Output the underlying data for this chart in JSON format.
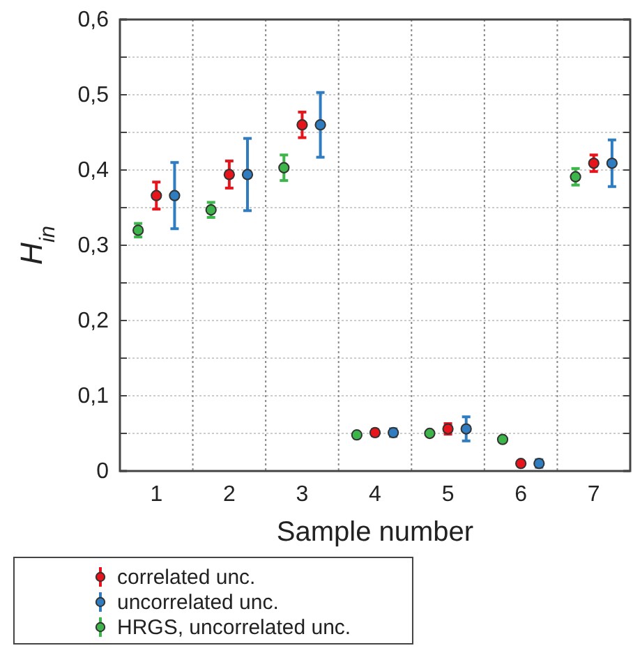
{
  "chart_data": {
    "type": "scatter",
    "xlabel": "Sample number",
    "ylabel": "H$_{in}$",
    "xlim": [
      0.5,
      7.5
    ],
    "xticks": [
      1,
      2,
      3,
      4,
      5,
      6,
      7
    ],
    "ylim": [
      0,
      0.6
    ],
    "yticks": [
      0,
      {
        "value": 0.05,
        "label": null
      },
      {
        "value": 0.1,
        "label": "0,1"
      },
      {
        "value": 0.15,
        "label": null
      },
      {
        "value": 0.2,
        "label": "0,2"
      },
      {
        "value": 0.25,
        "label": null
      },
      {
        "value": 0.3,
        "label": "0,3"
      },
      {
        "value": 0.35,
        "label": null
      },
      {
        "value": 0.4,
        "label": "0,4"
      },
      {
        "value": 0.45,
        "label": null
      },
      {
        "value": 0.5,
        "label": "0,5"
      },
      {
        "value": 0.55,
        "label": null
      },
      {
        "value": 0.6,
        "label": "0,6"
      }
    ],
    "grid": "y",
    "legend": "bottom",
    "marker": "circle",
    "ref_lines": [
      {
        "axis": "x",
        "value": 1.5,
        "line_style": "dotted",
        "color": "#888888"
      },
      {
        "axis": "x",
        "value": 2.5,
        "line_style": "dotted",
        "color": "#888888"
      },
      {
        "axis": "x",
        "value": 3.5,
        "line_style": "dotted",
        "color": "#888888"
      },
      {
        "axis": "x",
        "value": 4.5,
        "line_style": "dotted",
        "color": "#888888"
      },
      {
        "axis": "x",
        "value": 5.5,
        "line_style": "dotted",
        "color": "#888888"
      },
      {
        "axis": "x",
        "value": 6.5,
        "line_style": "dotted",
        "color": "#888888"
      }
    ],
    "series": [
      {
        "name": "correlated unc.",
        "color": "#e8141b",
        "x": [
          1,
          2,
          3,
          4,
          5,
          6,
          7
        ],
        "values": [
          0.366,
          0.394,
          0.46,
          0.051,
          0.056,
          0.01,
          0.409
        ],
        "errors": [
          0.018,
          0.018,
          0.017,
          0.004,
          0.007,
          0.003,
          0.011
        ]
      },
      {
        "name": "uncorrelated unc.",
        "color": "#2f7dc0",
        "x": [
          1.25,
          2.25,
          3.25,
          4.25,
          5.25,
          6.25,
          7.25
        ],
        "values": [
          0.366,
          0.394,
          0.46,
          0.051,
          0.056,
          0.01,
          0.409
        ],
        "errors": [
          0.044,
          0.048,
          0.043,
          0.005,
          0.016,
          0.005,
          0.031
        ]
      },
      {
        "name": "HRGS, uncorrelated unc.",
        "color": "#3db54a",
        "x": [
          0.75,
          1.75,
          2.75,
          3.75,
          4.75,
          5.75,
          6.75
        ],
        "values": [
          0.32,
          0.347,
          0.403,
          0.048,
          0.05,
          0.042,
          0.391
        ],
        "errors": [
          0.009,
          0.01,
          0.017,
          null,
          null,
          null,
          0.011
        ]
      }
    ]
  }
}
